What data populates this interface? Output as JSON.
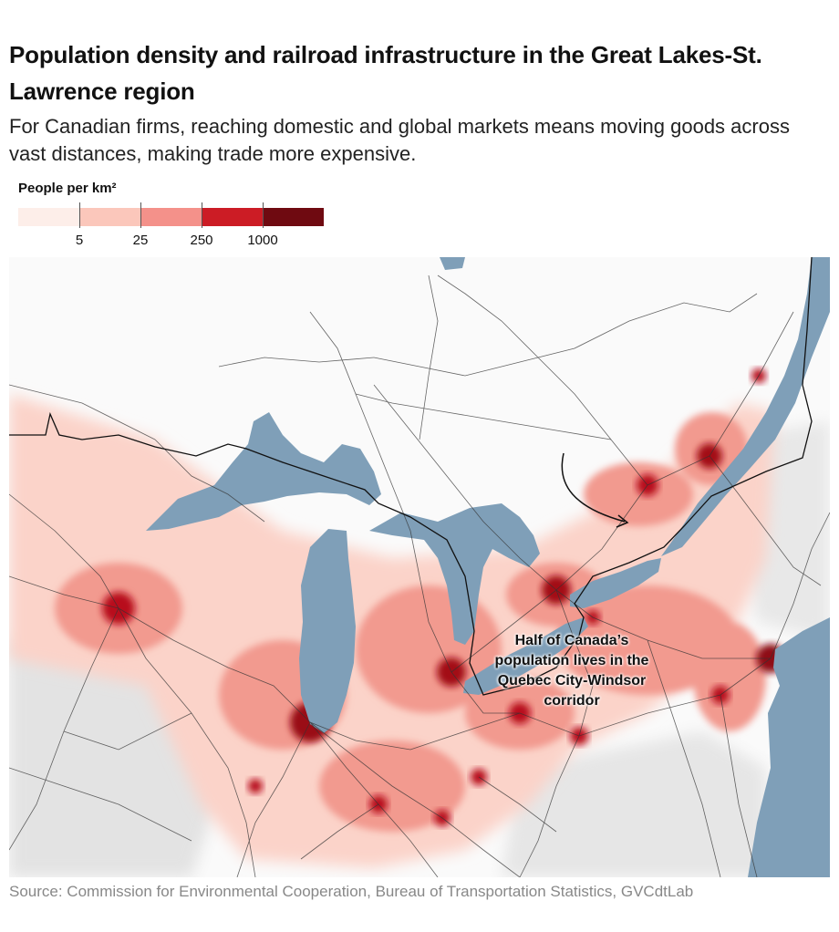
{
  "header": {
    "title": "Population density and railroad infrastructure in the Great Lakes-St. Lawrence region",
    "subtitle": "For Canadian firms, reaching domestic and global markets means moving goods across vast distances, making trade more expensive."
  },
  "legend": {
    "title": "People per km²",
    "colors": [
      "#fdeee9",
      "#fbc7bb",
      "#f4918a",
      "#cc1c25",
      "#6f0a11"
    ],
    "breaks": [
      "5",
      "25",
      "250",
      "1000"
    ]
  },
  "map": {
    "annotation": "Half of Canada’s population lives in the Quebec City-Windsor corridor",
    "water_color": "#7f9fb8",
    "rail_color": "#333333",
    "border_color": "#111111"
  },
  "footer": {
    "source": "Source: Commission for Environmental Cooperation, Bureau of Transportation Statistics, GVCdtLab"
  }
}
